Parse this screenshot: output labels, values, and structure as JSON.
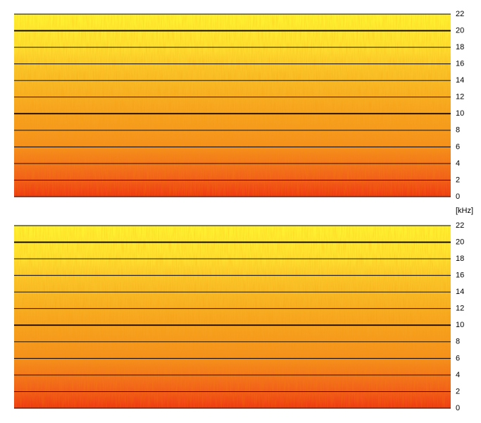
{
  "chart_data": [
    {
      "type": "spectrogram",
      "ylim": [
        0,
        22
      ],
      "yticks": [
        0,
        2,
        4,
        6,
        8,
        10,
        12,
        14,
        16,
        18,
        20,
        22
      ],
      "grid": true,
      "y_unit_label": "[kHz]"
    },
    {
      "type": "spectrogram",
      "ylim": [
        0,
        22
      ],
      "yticks": [
        0,
        2,
        4,
        6,
        8,
        10,
        12,
        14,
        16,
        18,
        20,
        22
      ],
      "grid": true
    }
  ]
}
